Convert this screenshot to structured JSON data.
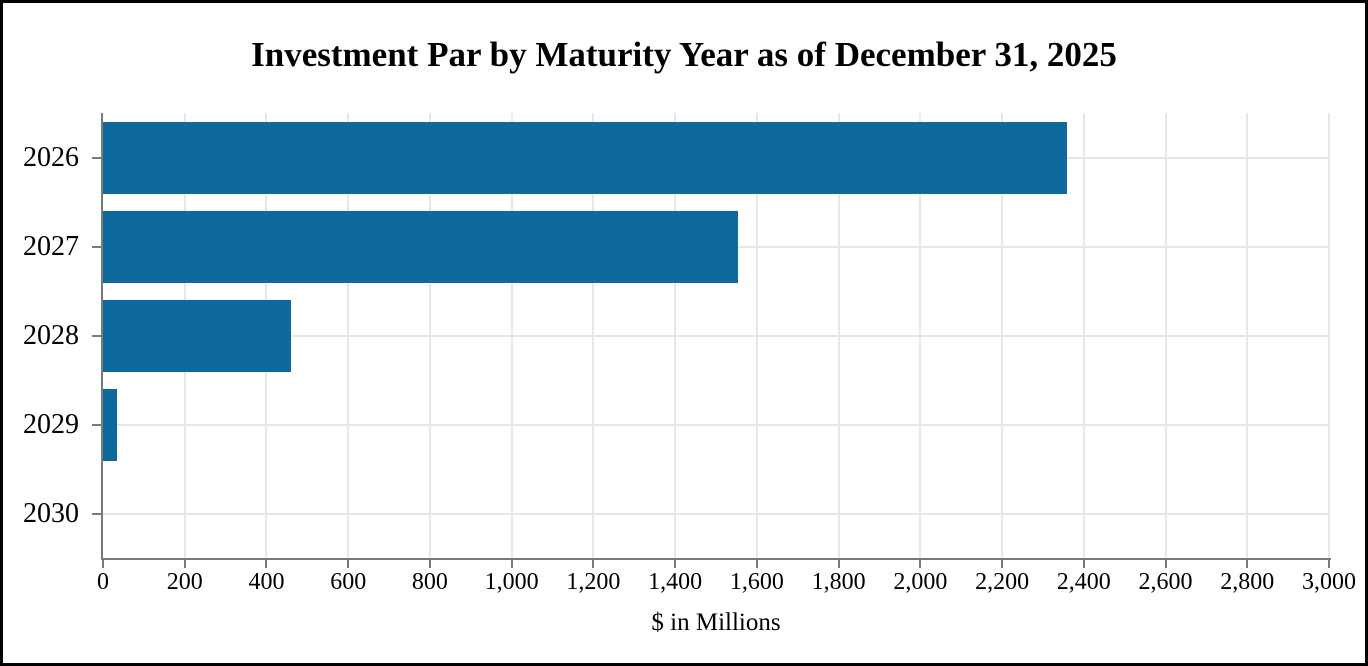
{
  "title": "Investment Par by Maturity Year as of December 31, 2025",
  "chart_data": {
    "type": "bar",
    "orientation": "horizontal",
    "title": "Investment Par by Maturity Year as of December 31, 2025",
    "xlabel": "$ in Millions",
    "ylabel": "",
    "categories": [
      "2026",
      "2027",
      "2028",
      "2029",
      "2030"
    ],
    "values": [
      2360,
      1555,
      460,
      35,
      0
    ],
    "xlim": [
      0,
      3000
    ],
    "xticks": [
      0,
      200,
      400,
      600,
      800,
      1000,
      1200,
      1400,
      1600,
      1800,
      2000,
      2200,
      2400,
      2600,
      2800,
      3000
    ],
    "grid": true,
    "legend": false,
    "colors": {
      "bar": "#0e6a9c",
      "grid": "#e7e7e7",
      "axis": "#7a7a7a",
      "text": "#000000",
      "background": "#ffffff",
      "border": "#000000"
    }
  }
}
